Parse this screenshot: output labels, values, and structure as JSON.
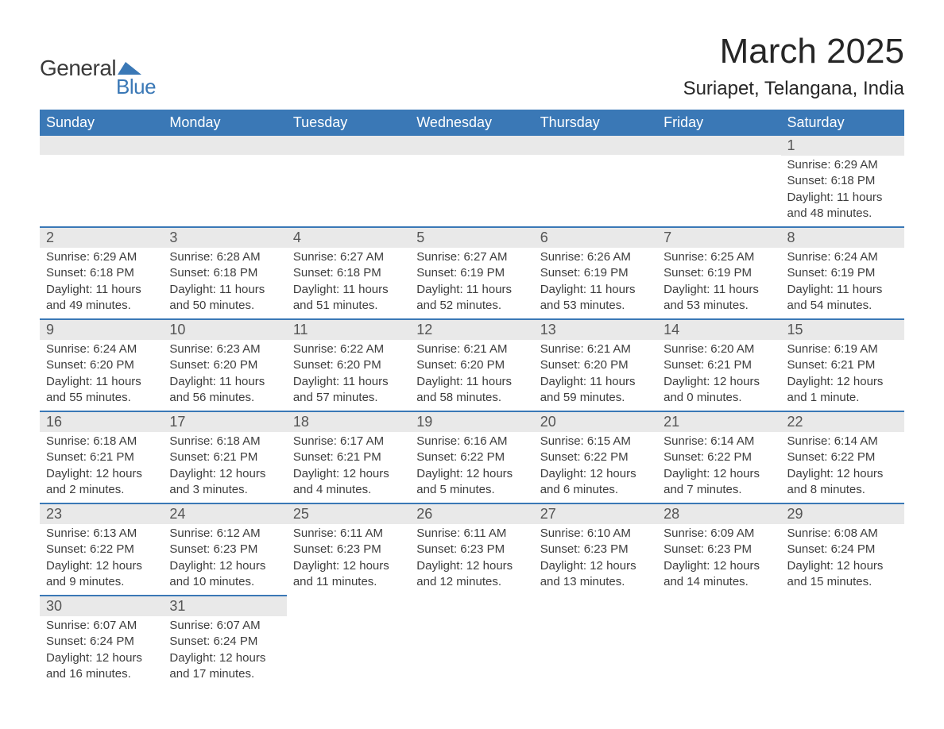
{
  "logo": {
    "text_general": "General",
    "text_blue": "Blue",
    "icon_color": "#3a78b6"
  },
  "header": {
    "month_title": "March 2025",
    "location": "Suriapet, Telangana, India"
  },
  "colors": {
    "header_bg": "#3a78b6",
    "header_text": "#ffffff",
    "daybar_bg": "#e9e9e9",
    "daybar_text": "#555555",
    "body_text": "#3d3d3d",
    "row_border": "#3a78b6",
    "title_text": "#262626",
    "background": "#ffffff"
  },
  "typography": {
    "month_title_fontsize": 44,
    "location_fontsize": 24,
    "weekday_fontsize": 18,
    "daynum_fontsize": 18,
    "detail_fontsize": 15,
    "font_family": "Arial"
  },
  "weekdays": [
    "Sunday",
    "Monday",
    "Tuesday",
    "Wednesday",
    "Thursday",
    "Friday",
    "Saturday"
  ],
  "weeks": [
    [
      {
        "day": "",
        "sunrise": "",
        "sunset": "",
        "daylight": ""
      },
      {
        "day": "",
        "sunrise": "",
        "sunset": "",
        "daylight": ""
      },
      {
        "day": "",
        "sunrise": "",
        "sunset": "",
        "daylight": ""
      },
      {
        "day": "",
        "sunrise": "",
        "sunset": "",
        "daylight": ""
      },
      {
        "day": "",
        "sunrise": "",
        "sunset": "",
        "daylight": ""
      },
      {
        "day": "",
        "sunrise": "",
        "sunset": "",
        "daylight": ""
      },
      {
        "day": "1",
        "sunrise": "Sunrise: 6:29 AM",
        "sunset": "Sunset: 6:18 PM",
        "daylight": "Daylight: 11 hours and 48 minutes."
      }
    ],
    [
      {
        "day": "2",
        "sunrise": "Sunrise: 6:29 AM",
        "sunset": "Sunset: 6:18 PM",
        "daylight": "Daylight: 11 hours and 49 minutes."
      },
      {
        "day": "3",
        "sunrise": "Sunrise: 6:28 AM",
        "sunset": "Sunset: 6:18 PM",
        "daylight": "Daylight: 11 hours and 50 minutes."
      },
      {
        "day": "4",
        "sunrise": "Sunrise: 6:27 AM",
        "sunset": "Sunset: 6:18 PM",
        "daylight": "Daylight: 11 hours and 51 minutes."
      },
      {
        "day": "5",
        "sunrise": "Sunrise: 6:27 AM",
        "sunset": "Sunset: 6:19 PM",
        "daylight": "Daylight: 11 hours and 52 minutes."
      },
      {
        "day": "6",
        "sunrise": "Sunrise: 6:26 AM",
        "sunset": "Sunset: 6:19 PM",
        "daylight": "Daylight: 11 hours and 53 minutes."
      },
      {
        "day": "7",
        "sunrise": "Sunrise: 6:25 AM",
        "sunset": "Sunset: 6:19 PM",
        "daylight": "Daylight: 11 hours and 53 minutes."
      },
      {
        "day": "8",
        "sunrise": "Sunrise: 6:24 AM",
        "sunset": "Sunset: 6:19 PM",
        "daylight": "Daylight: 11 hours and 54 minutes."
      }
    ],
    [
      {
        "day": "9",
        "sunrise": "Sunrise: 6:24 AM",
        "sunset": "Sunset: 6:20 PM",
        "daylight": "Daylight: 11 hours and 55 minutes."
      },
      {
        "day": "10",
        "sunrise": "Sunrise: 6:23 AM",
        "sunset": "Sunset: 6:20 PM",
        "daylight": "Daylight: 11 hours and 56 minutes."
      },
      {
        "day": "11",
        "sunrise": "Sunrise: 6:22 AM",
        "sunset": "Sunset: 6:20 PM",
        "daylight": "Daylight: 11 hours and 57 minutes."
      },
      {
        "day": "12",
        "sunrise": "Sunrise: 6:21 AM",
        "sunset": "Sunset: 6:20 PM",
        "daylight": "Daylight: 11 hours and 58 minutes."
      },
      {
        "day": "13",
        "sunrise": "Sunrise: 6:21 AM",
        "sunset": "Sunset: 6:20 PM",
        "daylight": "Daylight: 11 hours and 59 minutes."
      },
      {
        "day": "14",
        "sunrise": "Sunrise: 6:20 AM",
        "sunset": "Sunset: 6:21 PM",
        "daylight": "Daylight: 12 hours and 0 minutes."
      },
      {
        "day": "15",
        "sunrise": "Sunrise: 6:19 AM",
        "sunset": "Sunset: 6:21 PM",
        "daylight": "Daylight: 12 hours and 1 minute."
      }
    ],
    [
      {
        "day": "16",
        "sunrise": "Sunrise: 6:18 AM",
        "sunset": "Sunset: 6:21 PM",
        "daylight": "Daylight: 12 hours and 2 minutes."
      },
      {
        "day": "17",
        "sunrise": "Sunrise: 6:18 AM",
        "sunset": "Sunset: 6:21 PM",
        "daylight": "Daylight: 12 hours and 3 minutes."
      },
      {
        "day": "18",
        "sunrise": "Sunrise: 6:17 AM",
        "sunset": "Sunset: 6:21 PM",
        "daylight": "Daylight: 12 hours and 4 minutes."
      },
      {
        "day": "19",
        "sunrise": "Sunrise: 6:16 AM",
        "sunset": "Sunset: 6:22 PM",
        "daylight": "Daylight: 12 hours and 5 minutes."
      },
      {
        "day": "20",
        "sunrise": "Sunrise: 6:15 AM",
        "sunset": "Sunset: 6:22 PM",
        "daylight": "Daylight: 12 hours and 6 minutes."
      },
      {
        "day": "21",
        "sunrise": "Sunrise: 6:14 AM",
        "sunset": "Sunset: 6:22 PM",
        "daylight": "Daylight: 12 hours and 7 minutes."
      },
      {
        "day": "22",
        "sunrise": "Sunrise: 6:14 AM",
        "sunset": "Sunset: 6:22 PM",
        "daylight": "Daylight: 12 hours and 8 minutes."
      }
    ],
    [
      {
        "day": "23",
        "sunrise": "Sunrise: 6:13 AM",
        "sunset": "Sunset: 6:22 PM",
        "daylight": "Daylight: 12 hours and 9 minutes."
      },
      {
        "day": "24",
        "sunrise": "Sunrise: 6:12 AM",
        "sunset": "Sunset: 6:23 PM",
        "daylight": "Daylight: 12 hours and 10 minutes."
      },
      {
        "day": "25",
        "sunrise": "Sunrise: 6:11 AM",
        "sunset": "Sunset: 6:23 PM",
        "daylight": "Daylight: 12 hours and 11 minutes."
      },
      {
        "day": "26",
        "sunrise": "Sunrise: 6:11 AM",
        "sunset": "Sunset: 6:23 PM",
        "daylight": "Daylight: 12 hours and 12 minutes."
      },
      {
        "day": "27",
        "sunrise": "Sunrise: 6:10 AM",
        "sunset": "Sunset: 6:23 PM",
        "daylight": "Daylight: 12 hours and 13 minutes."
      },
      {
        "day": "28",
        "sunrise": "Sunrise: 6:09 AM",
        "sunset": "Sunset: 6:23 PM",
        "daylight": "Daylight: 12 hours and 14 minutes."
      },
      {
        "day": "29",
        "sunrise": "Sunrise: 6:08 AM",
        "sunset": "Sunset: 6:24 PM",
        "daylight": "Daylight: 12 hours and 15 minutes."
      }
    ],
    [
      {
        "day": "30",
        "sunrise": "Sunrise: 6:07 AM",
        "sunset": "Sunset: 6:24 PM",
        "daylight": "Daylight: 12 hours and 16 minutes."
      },
      {
        "day": "31",
        "sunrise": "Sunrise: 6:07 AM",
        "sunset": "Sunset: 6:24 PM",
        "daylight": "Daylight: 12 hours and 17 minutes."
      },
      {
        "day": "",
        "sunrise": "",
        "sunset": "",
        "daylight": ""
      },
      {
        "day": "",
        "sunrise": "",
        "sunset": "",
        "daylight": ""
      },
      {
        "day": "",
        "sunrise": "",
        "sunset": "",
        "daylight": ""
      },
      {
        "day": "",
        "sunrise": "",
        "sunset": "",
        "daylight": ""
      },
      {
        "day": "",
        "sunrise": "",
        "sunset": "",
        "daylight": ""
      }
    ]
  ]
}
